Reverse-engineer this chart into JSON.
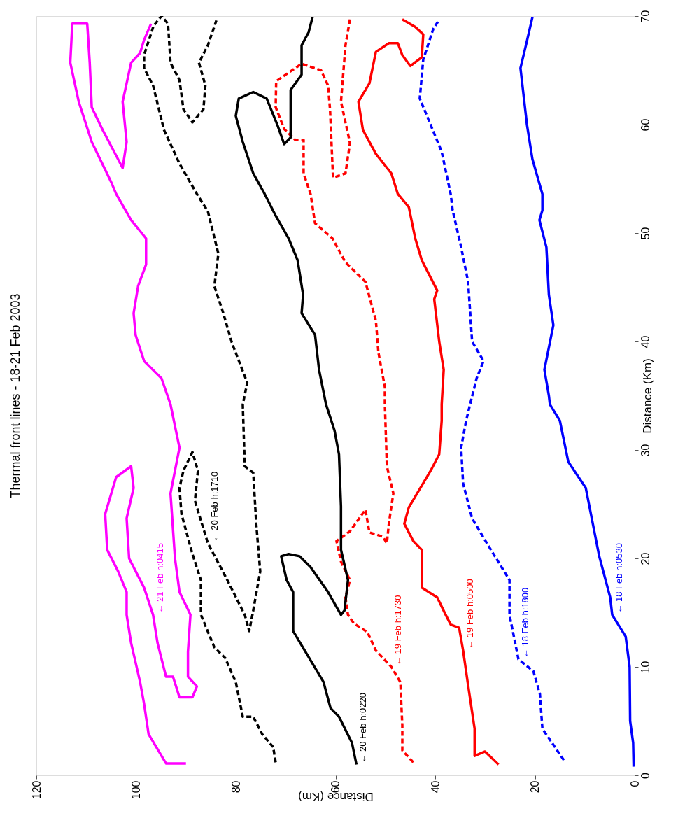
{
  "chart_data": {
    "type": "line",
    "title": "Thermal front lines - 18-21 Feb 2003",
    "xlabel": "Distance (Km)",
    "ylabel": "Distance (Km)",
    "xlim": [
      120,
      0
    ],
    "xticks": [
      120,
      100,
      80,
      60,
      40,
      20,
      0
    ],
    "ylim": [
      0,
      70
    ],
    "yticks": [
      0,
      10,
      20,
      30,
      40,
      50,
      60,
      70
    ],
    "grid": false,
    "series": [
      {
        "color": "#0000ff",
        "line_style": "solid",
        "values": [
          0.8,
          3,
          5,
          10,
          12.8,
          14.8,
          16.4,
          20.2,
          26.5,
          28.9,
          32.7,
          34.2,
          35,
          37.4,
          41.5,
          44.3,
          48.7,
          51.2,
          52.1,
          53.6,
          56.8,
          60,
          65.2,
          67.7,
          69.9
        ],
        "x": [
          0.2,
          0.3,
          0.9,
          1.0,
          1.8,
          4.5,
          4.9,
          7.1,
          9.8,
          13.3,
          15,
          17,
          17.2,
          18.1,
          16.3,
          17.2,
          17.7,
          19.1,
          18.5,
          18.5,
          20.5,
          21.6,
          22.9,
          21.6,
          20.5
        ]
      },
      {
        "color": "#0000ff",
        "line_style": "dashed",
        "values": [
          1.4,
          4.3,
          7.5,
          9.6,
          10.7,
          14.8,
          18,
          21.6,
          23.7,
          26.9,
          30.2,
          32.7,
          34.2,
          36.6,
          38.2,
          40,
          45.5,
          48.7,
          52.1,
          53.6,
          57.5,
          62.4,
          66,
          68.8,
          69.6
        ],
        "x": [
          14.2,
          18.5,
          19,
          20.3,
          23.3,
          25.1,
          25.1,
          29.9,
          32.6,
          34.4,
          34.8,
          33.8,
          33,
          31.7,
          30.3,
          32.6,
          33.4,
          34.8,
          36.5,
          36.9,
          38.7,
          43.1,
          42.4,
          40.4,
          39.3
        ]
      },
      {
        "color": "#ff0000",
        "line_style": "solid",
        "values": [
          1,
          2.2,
          1.8,
          4.3,
          8.3,
          11.5,
          13.6,
          13.9,
          14.8,
          16.4,
          17.3,
          20.8,
          21.6,
          23.2,
          24.7,
          28.1,
          29.6,
          32.7,
          34.2,
          37.4,
          40,
          43.9,
          44.7,
          47.5,
          49.5,
          52.4,
          53.6,
          55.5,
          57.3,
          59.5,
          62.1,
          63.8,
          66.7,
          67.5,
          67.5,
          66.4,
          65.4,
          66.2,
          68.3,
          69,
          69.7
        ],
        "x": [
          27.3,
          30,
          32.1,
          32.1,
          33.4,
          34.4,
          35.2,
          36.9,
          37.9,
          39.6,
          42.7,
          42.7,
          44.4,
          46.2,
          45.3,
          40.9,
          39.2,
          38.7,
          38.7,
          38.3,
          39.2,
          40.2,
          39.6,
          42.7,
          44,
          45.3,
          47.5,
          48.8,
          51.9,
          54.5,
          55.4,
          53.2,
          51.9,
          49.3,
          47.5,
          46.6,
          45,
          42.7,
          42.4,
          44,
          46.6
        ]
      },
      {
        "color": "#ff0000",
        "line_style": "dashed",
        "values": [
          1.2,
          2.3,
          4.6,
          8.6,
          10,
          11.5,
          13.2,
          14,
          14.8,
          16.4,
          18,
          19.7,
          21.6,
          22.5,
          24.5,
          22.4,
          22,
          21.4,
          23.2,
          26,
          28.5,
          34.2,
          35.8,
          39,
          41.9,
          45.5,
          47.3,
          49.5,
          50.9,
          53.6,
          55.5,
          58.6,
          58.6,
          59.6,
          61.6,
          64,
          65.6,
          65,
          63.6,
          61.4,
          55.1,
          55.5,
          58.3,
          62.1,
          67.3,
          69.7
        ],
        "x": [
          44.4,
          46.6,
          46.6,
          47,
          48.8,
          51.9,
          53.6,
          56.3,
          57.5,
          58,
          57.1,
          58.9,
          59.8,
          57.1,
          54,
          53.2,
          50.5,
          49.7,
          49.3,
          48.4,
          49.7,
          50.1,
          50.1,
          51.4,
          51.9,
          54,
          58,
          60.6,
          64.1,
          65,
          66.4,
          66.4,
          68.1,
          70.3,
          72,
          71.9,
          66.8,
          62.9,
          61.5,
          61.1,
          60.5,
          58,
          57.1,
          58.9,
          58,
          57.1
        ]
      },
      {
        "color": "#000000",
        "line_style": "solid",
        "values": [
          1,
          3,
          5.4,
          6.2,
          8.6,
          13.3,
          16.9,
          18,
          20.2,
          20.4,
          20.2,
          19.2,
          16.9,
          14.8,
          15.2,
          18,
          20.8,
          24.8,
          29.6,
          31.8,
          34.2,
          37.4,
          40.6,
          42.6,
          44.3,
          47.5,
          49.5,
          51.6,
          53.6,
          55.5,
          58.4,
          60.8,
          62.4,
          63,
          62.4,
          59.9,
          58.2,
          58.8,
          63.2,
          64.6,
          67.3,
          68.5,
          69.9
        ],
        "x": [
          55.8,
          56.7,
          59.3,
          61,
          62.4,
          68.5,
          68.5,
          69.8,
          70.9,
          69.4,
          67.2,
          65,
          61.5,
          58.9,
          58.2,
          57.5,
          58.9,
          58.9,
          59.3,
          60.2,
          61.9,
          63.3,
          64.1,
          66.8,
          66.5,
          67.6,
          69.4,
          72,
          74.2,
          76.5,
          78.6,
          80,
          79.4,
          76.5,
          73.8,
          71.6,
          70.3,
          69,
          69,
          66.8,
          66.8,
          65.4,
          64.6
        ]
      },
      {
        "color": "#000000",
        "line_style": "dashed",
        "values": [
          1.2,
          2.6,
          3.8,
          5.4,
          5.4,
          8.6,
          10.8,
          11.8,
          14.8,
          18,
          20.4,
          24.1,
          26.5,
          28.1,
          29.8,
          28.1,
          25.3,
          21.4,
          18,
          14.8,
          13.3,
          15.2,
          18.8,
          23.2,
          27.9,
          28.5,
          34.2,
          36.2,
          39.9,
          42.6,
          45.1,
          48.1,
          52,
          53.6,
          56.4,
          59.5,
          63.6,
          65.2,
          66.4,
          69.1,
          70,
          69.3,
          65.7,
          64.1,
          61.4,
          60.2,
          61.4,
          63.6,
          65.7,
          67.3,
          69.6
        ],
        "x": [
          72,
          72.5,
          74.7,
          76.5,
          78.6,
          80,
          82.1,
          84.3,
          87,
          87,
          88.7,
          90.9,
          91.3,
          90.5,
          88.7,
          87.6,
          88.2,
          85.6,
          81.7,
          78.2,
          77.3,
          76.5,
          75.1,
          75.9,
          76.5,
          78.2,
          78.6,
          77.7,
          80.8,
          82.5,
          84.3,
          83.5,
          85.6,
          87.8,
          91.3,
          94.4,
          96.6,
          98.4,
          98.4,
          96.5,
          94.9,
          93.6,
          93.1,
          91.3,
          90.5,
          88.7,
          86.5,
          86.1,
          87.4,
          85.6,
          83.9
        ]
      },
      {
        "color": "#ff00ff",
        "line_style": "solid",
        "values": [
          1.1,
          1.1,
          3.8,
          6.6,
          8.6,
          12.2,
          14.8,
          16.9,
          18.8,
          20.8,
          24.1,
          27.5,
          28.5,
          26.5,
          23.7,
          20,
          17.3,
          14.8,
          12.2,
          9.1,
          9.1,
          7.2,
          7.2,
          8.2,
          9.1,
          11.4,
          14.8,
          16.9,
          20,
          26,
          30.2,
          34.2,
          36.6,
          38.2,
          40.6,
          42.6,
          45.1,
          47.1,
          49.5,
          51.2,
          53.6,
          54.7,
          58.4,
          62.1,
          65.7,
          69.3,
          69.3,
          65.7,
          61.6,
          59.5,
          56,
          58.4,
          62.1,
          65.7,
          66.6,
          67.8,
          69.3
        ],
        "x": [
          90,
          94,
          97.5,
          98.4,
          99.2,
          101,
          101.9,
          101.9,
          103.6,
          105.8,
          106.2,
          104,
          101,
          100.5,
          101.9,
          101.4,
          98.4,
          96.6,
          95.7,
          94,
          92.6,
          91.3,
          88.7,
          87.8,
          89.6,
          89.6,
          89.1,
          91.3,
          92.2,
          93.1,
          91.3,
          93.1,
          94.9,
          98.4,
          100.1,
          100.5,
          99.6,
          98,
          98,
          101,
          104,
          105,
          108.9,
          111.5,
          113.2,
          112.8,
          109.8,
          109.3,
          108.9,
          106.7,
          102.7,
          101.9,
          102.7,
          101,
          99.2,
          98.4,
          97
        ]
      }
    ],
    "annotations": [
      {
        "text": "← 21 Feb h:0415",
        "x": 96.6,
        "y": 14.8
      },
      {
        "text": "← 20 Feb h:1710",
        "x": 85.6,
        "y": 21.4
      },
      {
        "text": "← 20 Feb h:0220",
        "x": 55.8,
        "y": 1
      },
      {
        "text": "← 19 Feb h:1730",
        "x": 48.8,
        "y": 10
      },
      {
        "text": "← 19 Feb h:0500",
        "x": 34.4,
        "y": 11.5
      },
      {
        "text": "← 18 Feb h:1800",
        "x": 23.3,
        "y": 10.7
      },
      {
        "text": "← 18 Feb h:0530",
        "x": 4.5,
        "y": 14.8
      }
    ]
  }
}
